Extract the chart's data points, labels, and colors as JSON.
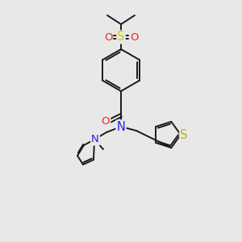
{
  "bg_color": "#e8e8e8",
  "bond_color": "#1a1a1a",
  "atom_colors": {
    "N": "#2020ff",
    "O": "#ff2020",
    "S_sulfonyl": "#cccc00",
    "S_thiophene": "#b8b800",
    "C": "#1a1a1a"
  },
  "lw": 1.4,
  "font_size": 9.5,
  "figsize": [
    3.0,
    3.0
  ],
  "dpi": 100
}
